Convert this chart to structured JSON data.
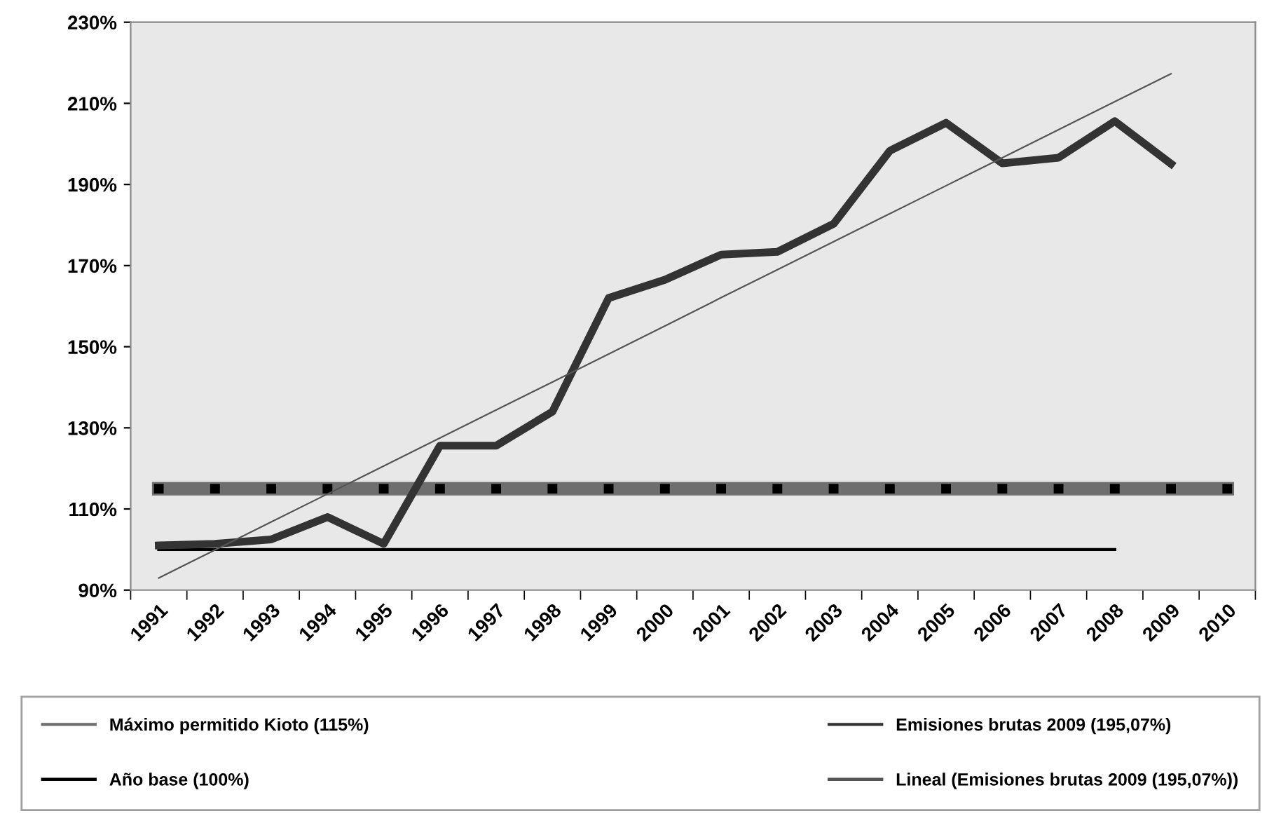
{
  "chart_data": {
    "type": "line",
    "categories": [
      "1991",
      "1992",
      "1993",
      "1994",
      "1995",
      "1996",
      "1997",
      "1998",
      "1999",
      "2000",
      "2001",
      "2002",
      "2003",
      "2004",
      "2005",
      "2006",
      "2007",
      "2008",
      "2009",
      "2010"
    ],
    "ylim": [
      90,
      230
    ],
    "yticks": [
      {
        "value": 90,
        "label": "90%"
      },
      {
        "value": 110,
        "label": "110%"
      },
      {
        "value": 130,
        "label": "130%"
      },
      {
        "value": 150,
        "label": "150%"
      },
      {
        "value": 170,
        "label": "170%"
      },
      {
        "value": 190,
        "label": "190%"
      },
      {
        "value": 210,
        "label": "210%"
      },
      {
        "value": 230,
        "label": "230%"
      }
    ],
    "grid": false,
    "legend": "bottom",
    "series": [
      {
        "name": "Máximo permitido Kioto (115%)",
        "color": "#6e6e6e",
        "marker": "square",
        "values": [
          115,
          115,
          115,
          115,
          115,
          115,
          115,
          115,
          115,
          115,
          115,
          115,
          115,
          115,
          115,
          115,
          115,
          115,
          115,
          115
        ]
      },
      {
        "name": "Año base (100%)",
        "color": "#000000",
        "values": [
          100,
          100,
          100,
          100,
          100,
          100,
          100,
          100,
          100,
          100,
          100,
          100,
          100,
          100,
          100,
          100,
          100,
          100,
          null,
          null
        ]
      },
      {
        "name": "Emisiones brutas 2009 (195,07%)",
        "color": "#333333",
        "values": [
          101,
          101.4,
          102.5,
          108,
          101.4,
          125.6,
          125.6,
          134,
          162,
          166.5,
          172.7,
          173.4,
          180.3,
          198.3,
          205.2,
          195.2,
          196.6,
          205.6,
          195.1,
          null
        ]
      },
      {
        "name": "Lineal (Emisiones brutas 2009 (195,07%))",
        "color": "#555555",
        "values": [
          93,
          99.9,
          106.8,
          113.7,
          120.6,
          127.5,
          134.4,
          141.3,
          148.2,
          155.1,
          162.1,
          169,
          175.9,
          182.8,
          189.7,
          196.6,
          203.5,
          210.4,
          217.3,
          null
        ]
      }
    ]
  }
}
